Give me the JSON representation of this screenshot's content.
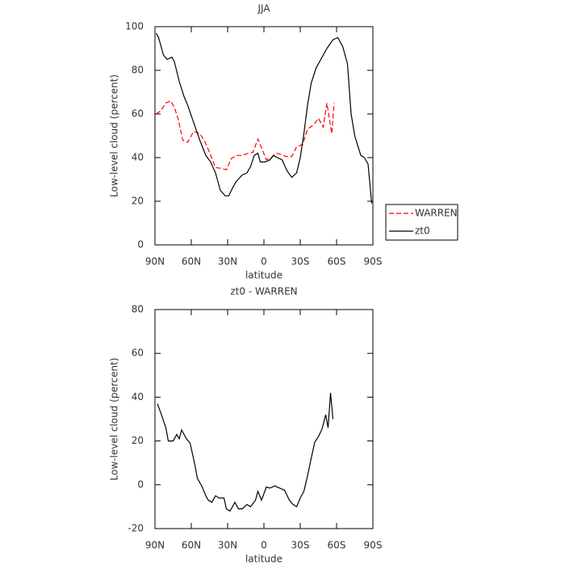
{
  "chart_data": [
    {
      "type": "line",
      "title": "JJA",
      "xlabel": "latitude",
      "ylabel": "Low-level cloud (percent)",
      "xlim": [
        90,
        -90
      ],
      "ylim": [
        0,
        100
      ],
      "xticks": [
        {
          "value": 90,
          "label": "90N"
        },
        {
          "value": 60,
          "label": "60N"
        },
        {
          "value": 30,
          "label": "30N"
        },
        0,
        {
          "value": -30,
          "label": "30S"
        },
        {
          "value": -60,
          "label": "60S"
        },
        {
          "value": -90,
          "label": "90S"
        }
      ],
      "yticks": [
        0,
        20,
        40,
        60,
        80,
        100
      ],
      "legend": "outside-right",
      "series": [
        {
          "name": "WARREN",
          "color": "#ff0000",
          "dash": true,
          "x": [
            89,
            85,
            81,
            77,
            74,
            71,
            67,
            63,
            58,
            53,
            49,
            45,
            40,
            35,
            31,
            27,
            23,
            18,
            13,
            9,
            5,
            2,
            -2,
            -6,
            -10,
            -14,
            -18,
            -23,
            -27,
            -32,
            -36,
            -41,
            -45,
            -49,
            -52,
            -56,
            -58
          ],
          "values": [
            60,
            61.5,
            65,
            66,
            63,
            58,
            48,
            47,
            52,
            51,
            47.5,
            42.5,
            35.5,
            35,
            34.5,
            39.5,
            41,
            41,
            42,
            42.5,
            48.5,
            44.5,
            39,
            40,
            42,
            41.5,
            40.5,
            40.5,
            45,
            46,
            53,
            55,
            58,
            54,
            65,
            51,
            65
          ]
        },
        {
          "name": "zt0",
          "color": "#000000",
          "dash": false,
          "x": [
            89,
            87,
            83,
            80,
            76,
            74,
            70,
            66,
            63,
            58,
            53,
            48,
            44,
            40,
            36,
            32,
            29,
            26,
            23,
            18,
            14,
            11,
            8,
            5,
            3,
            -1,
            -5,
            -8,
            -11,
            -15,
            -19,
            -23,
            -27,
            -30,
            -33,
            -36,
            -39,
            -43,
            -47,
            -52,
            -57,
            -61,
            -65,
            -69,
            -72,
            -75,
            -80,
            -83,
            -86,
            -89
          ],
          "values": [
            97,
            95,
            87,
            85,
            86,
            84,
            75,
            68,
            64,
            56,
            48,
            41,
            38,
            33,
            25,
            22.5,
            22.5,
            26,
            29,
            32,
            33,
            36,
            41,
            42,
            38,
            38,
            39,
            41,
            40,
            39,
            34,
            31,
            33,
            40,
            51,
            64,
            74,
            81,
            85,
            90,
            94,
            95,
            91,
            83,
            60,
            50,
            41,
            40,
            37,
            19
          ]
        }
      ]
    },
    {
      "type": "line",
      "title": "zt0 - WARREN",
      "xlabel": "latitude",
      "ylabel": "Low-level cloud (percent)",
      "xlim": [
        90,
        -90
      ],
      "ylim": [
        -20,
        80
      ],
      "xticks": [
        {
          "value": 90,
          "label": "90N"
        },
        {
          "value": 60,
          "label": "60N"
        },
        {
          "value": 30,
          "label": "30N"
        },
        0,
        {
          "value": -30,
          "label": "30S"
        },
        {
          "value": -60,
          "label": "60S"
        },
        {
          "value": -90,
          "label": "90S"
        }
      ],
      "yticks": [
        -20,
        0,
        20,
        40,
        60,
        80
      ],
      "series": [
        {
          "color": "#000000",
          "dash": false,
          "x": [
            88,
            85,
            81,
            79,
            75,
            72,
            70,
            68,
            64,
            61,
            57,
            55,
            51,
            48,
            46,
            43,
            40,
            37,
            33,
            31,
            28,
            24,
            21,
            18,
            14,
            11,
            7,
            5,
            2,
            -2,
            -5,
            -9,
            -13,
            -17,
            -21,
            -24,
            -27,
            -30,
            -33,
            -36,
            -39,
            -42,
            -45,
            -48,
            -51,
            -53,
            -55,
            -57
          ],
          "values": [
            37,
            32.5,
            26,
            20,
            20,
            23,
            21,
            25,
            21,
            19,
            9,
            3,
            -1,
            -5,
            -7,
            -8,
            -5,
            -6,
            -6,
            -11,
            -12,
            -8,
            -11,
            -11,
            -9,
            -10,
            -7,
            -3,
            -7,
            -1,
            -1.5,
            -0.5,
            -1.5,
            -2.5,
            -7,
            -9,
            -10,
            -6,
            -3,
            4,
            12,
            19.5,
            22,
            25.5,
            32,
            26,
            42,
            30
          ]
        }
      ]
    }
  ]
}
